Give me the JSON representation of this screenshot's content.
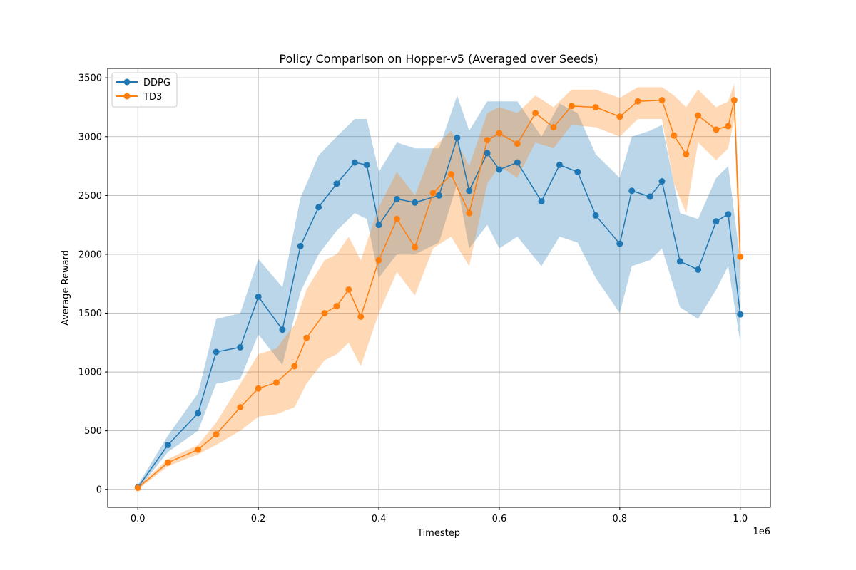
{
  "chart_data": {
    "type": "line",
    "title": "Policy Comparison on Hopper-v5 (Averaged over Seeds)",
    "xlabel": "Timestep",
    "ylabel": "Average Reward",
    "x_multiplier_label": "1e6",
    "xlim": [
      -0.05,
      1.05
    ],
    "ylim": [
      -150,
      3580
    ],
    "x_ticks": [
      0.0,
      0.2,
      0.4,
      0.6,
      0.8,
      1.0
    ],
    "x_tick_labels": [
      "0.0",
      "0.2",
      "0.4",
      "0.6",
      "0.8",
      "1.0"
    ],
    "y_ticks": [
      0,
      500,
      1000,
      1500,
      2000,
      2500,
      3000,
      3500
    ],
    "y_tick_labels": [
      "0",
      "500",
      "1000",
      "1500",
      "2000",
      "2500",
      "3000",
      "3500"
    ],
    "grid": true,
    "legend_position": "top-left",
    "series": [
      {
        "name": "DDPG",
        "color": "#1f77b4",
        "band_color": "#1f77b4",
        "x": [
          0.0,
          0.05,
          0.1,
          0.13,
          0.17,
          0.2,
          0.24,
          0.27,
          0.3,
          0.33,
          0.36,
          0.38,
          0.4,
          0.43,
          0.46,
          0.5,
          0.53,
          0.55,
          0.58,
          0.6,
          0.63,
          0.67,
          0.7,
          0.73,
          0.76,
          0.8,
          0.82,
          0.85,
          0.87,
          0.9,
          0.93,
          0.96,
          0.98,
          1.0
        ],
        "y": [
          20,
          380,
          650,
          1170,
          1210,
          1640,
          1360,
          2070,
          2400,
          2600,
          2780,
          2760,
          2250,
          2470,
          2440,
          2500,
          2990,
          2540,
          2860,
          2720,
          2780,
          2450,
          2760,
          2700,
          2330,
          2090,
          2540,
          2490,
          2620,
          1940,
          1870,
          2280,
          2340,
          1490
        ],
        "lower": [
          0,
          320,
          500,
          900,
          940,
          1320,
          1060,
          1680,
          2000,
          2200,
          2350,
          2300,
          1800,
          2000,
          2000,
          2100,
          2600,
          2050,
          2250,
          2050,
          2150,
          1900,
          2150,
          2100,
          1800,
          1500,
          1900,
          1950,
          2050,
          1550,
          1450,
          1700,
          1900,
          1250
        ],
        "upper": [
          40,
          460,
          820,
          1450,
          1500,
          1960,
          1720,
          2480,
          2840,
          3000,
          3150,
          3150,
          2700,
          2950,
          2900,
          2900,
          3350,
          3050,
          3300,
          3300,
          3300,
          3000,
          3280,
          3200,
          2850,
          2650,
          3000,
          3050,
          3100,
          2350,
          2300,
          2650,
          2750,
          1950
        ]
      },
      {
        "name": "TD3",
        "color": "#ff7f0e",
        "band_color": "#ff7f0e",
        "x": [
          0.0,
          0.05,
          0.1,
          0.13,
          0.17,
          0.2,
          0.23,
          0.26,
          0.28,
          0.31,
          0.33,
          0.35,
          0.37,
          0.4,
          0.43,
          0.46,
          0.49,
          0.52,
          0.55,
          0.58,
          0.6,
          0.63,
          0.66,
          0.69,
          0.72,
          0.76,
          0.8,
          0.83,
          0.87,
          0.89,
          0.91,
          0.93,
          0.96,
          0.98,
          0.99,
          1.0
        ],
        "y": [
          15,
          230,
          340,
          470,
          700,
          860,
          910,
          1050,
          1290,
          1500,
          1560,
          1700,
          1470,
          1950,
          2300,
          2060,
          2520,
          2680,
          2350,
          2970,
          3030,
          2940,
          3200,
          3080,
          3260,
          3250,
          3170,
          3300,
          3310,
          3010,
          2850,
          3180,
          3060,
          3090,
          3310,
          1980
        ],
        "lower": [
          0,
          200,
          300,
          380,
          500,
          620,
          640,
          700,
          900,
          1100,
          1150,
          1250,
          1050,
          1500,
          1850,
          1650,
          2050,
          2150,
          1900,
          2600,
          2750,
          2650,
          2950,
          2900,
          3100,
          3080,
          3000,
          3150,
          3150,
          2600,
          2350,
          2950,
          2800,
          2900,
          3150,
          1700
        ],
        "upper": [
          30,
          260,
          380,
          570,
          900,
          1150,
          1200,
          1400,
          1700,
          1950,
          2000,
          2150,
          1950,
          2400,
          2700,
          2500,
          2900,
          3050,
          2750,
          3200,
          3250,
          3200,
          3350,
          3250,
          3400,
          3400,
          3330,
          3420,
          3420,
          3350,
          3250,
          3400,
          3250,
          3300,
          3450,
          2300
        ]
      }
    ]
  }
}
